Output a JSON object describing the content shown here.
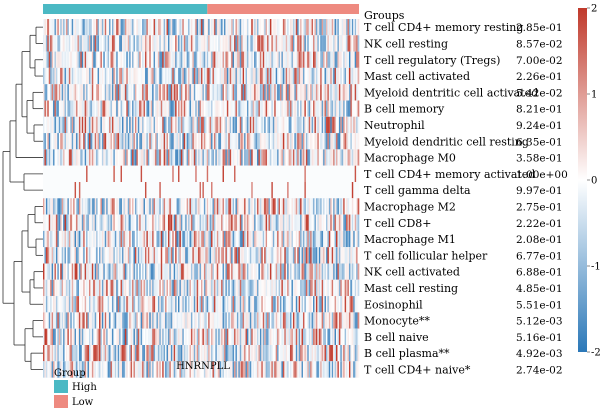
{
  "chart_data": {
    "type": "heatmap",
    "title": "",
    "xlabel": "HNRNPLL",
    "annotation": {
      "label": "Groups",
      "legend_title": "Group",
      "levels": [
        {
          "name": "High",
          "color": "#4bb9c4"
        },
        {
          "name": "Low",
          "color": "#ee8a80"
        }
      ],
      "high_fraction": 0.52
    },
    "rows": [
      {
        "label": "T cell CD4+ memory resting",
        "p": "2.85e-01"
      },
      {
        "label": "NK cell resting",
        "p": "8.57e-02"
      },
      {
        "label": "T cell regulatory (Tregs)",
        "p": "7.00e-02"
      },
      {
        "label": "Mast cell activated",
        "p": "2.26e-01"
      },
      {
        "label": "Myeloid dentritic cell activated",
        "p": "5.42e-02"
      },
      {
        "label": "B cell memory",
        "p": "8.21e-01"
      },
      {
        "label": "Neutrophil",
        "p": "9.24e-01"
      },
      {
        "label": "Myeloid dendritic cell resting",
        "p": "6.35e-01"
      },
      {
        "label": "Macrophage M0",
        "p": "3.58e-01"
      },
      {
        "label": "T cell CD4+ memory activated",
        "p": "1.00e+00"
      },
      {
        "label": "T cell gamma delta",
        "p": "9.97e-01"
      },
      {
        "label": "Macrophage M2",
        "p": "2.75e-01"
      },
      {
        "label": "T cell CD8+",
        "p": "2.22e-01"
      },
      {
        "label": "Macrophage M1",
        "p": "2.08e-01"
      },
      {
        "label": "T cell follicular helper",
        "p": "6.77e-01"
      },
      {
        "label": "NK cell activated",
        "p": "6.88e-01"
      },
      {
        "label": "Mast cell resting",
        "p": "4.85e-01"
      },
      {
        "label": "Eosinophil",
        "p": "5.51e-01"
      },
      {
        "label": "Monocyte**",
        "p": "5.12e-03"
      },
      {
        "label": "B cell naive",
        "p": "5.16e-01"
      },
      {
        "label": "B cell plasma**",
        "p": "4.92e-03"
      },
      {
        "label": "T cell CD4+ naive*",
        "p": "2.74e-02"
      }
    ],
    "color_scale": {
      "min": -2,
      "max": 2,
      "ticks": [
        "2",
        "1",
        "0",
        "-1",
        "-2"
      ],
      "low_color": "#2b78b8",
      "mid_color": "#ffffff",
      "high_color": "#c0392b"
    }
  }
}
